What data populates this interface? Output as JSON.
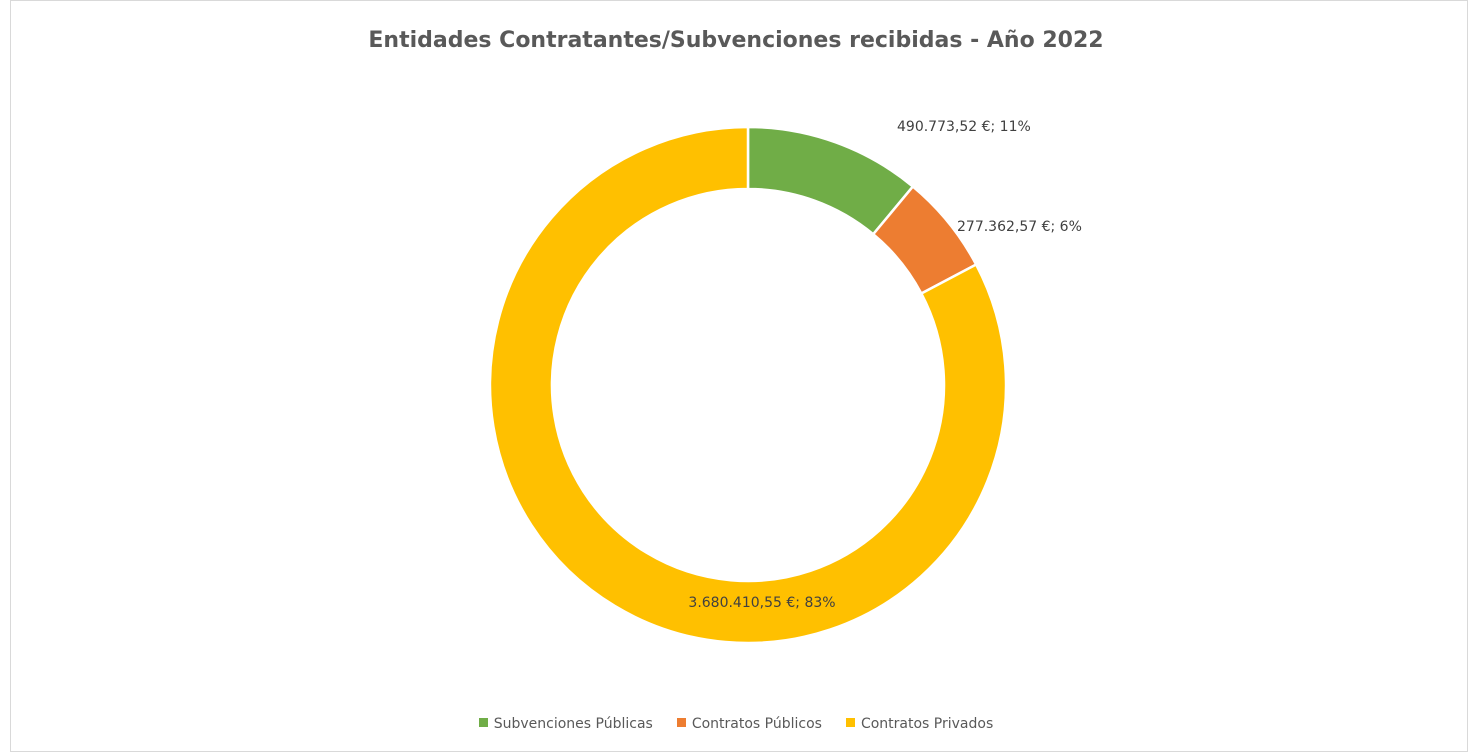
{
  "chart_data": {
    "type": "pie",
    "subtype": "doughnut",
    "title": "Entidades Contratantes/Subvenciones recibidas - Año 2022",
    "series": [
      {
        "name": "",
        "categories": [
          "Subvenciones Públicas",
          "Contratos Públicos",
          "Contratos Privados"
        ],
        "values": [
          490773.52,
          277362.57,
          3680410.55
        ],
        "percentages": [
          11,
          6,
          83
        ],
        "labels": [
          "490.773,52 €; 11%",
          "277.362,57 €; 6%",
          "3.680.410,55 €; 83%"
        ],
        "colors": [
          "#70AD47",
          "#ED7D31",
          "#FFC000"
        ]
      }
    ],
    "legend": {
      "position": "bottom",
      "entries": [
        "Subvenciones Públicas",
        "Contratos Públicos",
        "Contratos Privados"
      ]
    },
    "start_angle_deg": 0,
    "direction": "clockwise"
  }
}
